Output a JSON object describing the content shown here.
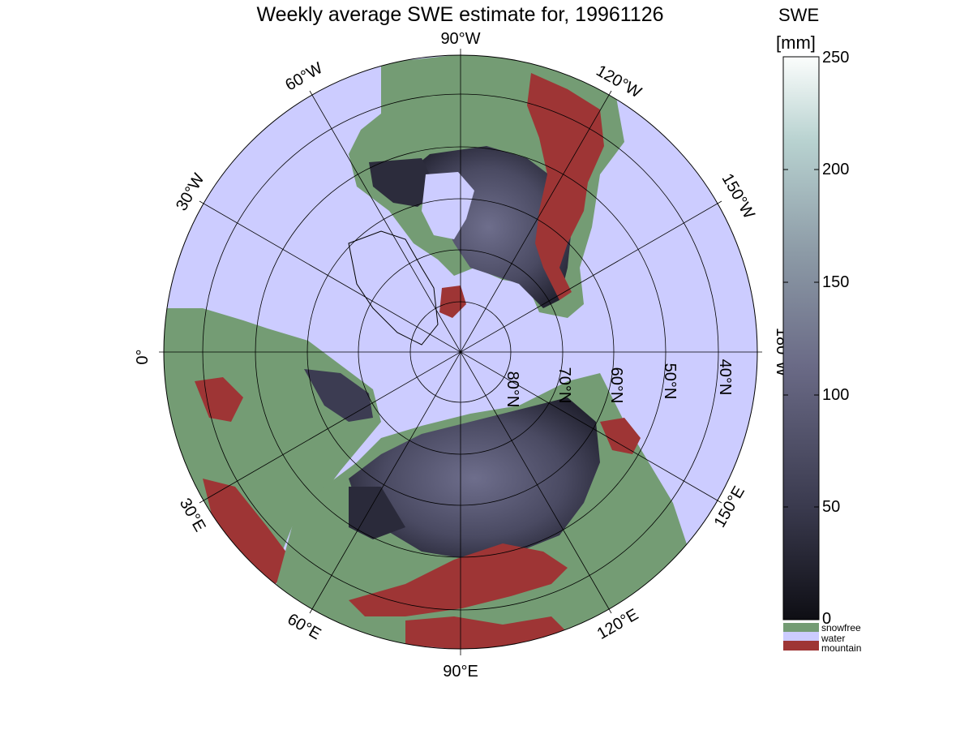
{
  "title": "Weekly average SWE estimate for, 19961126",
  "colorbar": {
    "title_line1": "SWE",
    "title_line2": "[mm]",
    "ticks": [
      "250",
      "200",
      "150",
      "100",
      "50",
      "0"
    ],
    "tick_values": [
      250,
      200,
      150,
      100,
      50,
      0
    ],
    "min": 0,
    "max": 250,
    "categories": [
      {
        "label": "snowfree",
        "color": "#749c74"
      },
      {
        "label": "water",
        "color": "#ccccff"
      },
      {
        "label": "mountain",
        "color": "#9e3535"
      }
    ]
  },
  "colors": {
    "snowfree": "#749c74",
    "water": "#ccccff",
    "mountain": "#9e3535",
    "swe_low": "#0e0e14",
    "swe_mid": "#5a5a7a",
    "swe_high": "#ffffff"
  },
  "map": {
    "projection": "north polar stereographic",
    "longitude_labels": [
      "90°W",
      "120°W",
      "150°W",
      "180°W",
      "150°E",
      "120°E",
      "90°E",
      "60°E",
      "30°E",
      "0°",
      "30°W",
      "60°W"
    ],
    "latitude_labels": [
      "80°N",
      "70°N",
      "60°N",
      "50°N",
      "40°N"
    ]
  }
}
